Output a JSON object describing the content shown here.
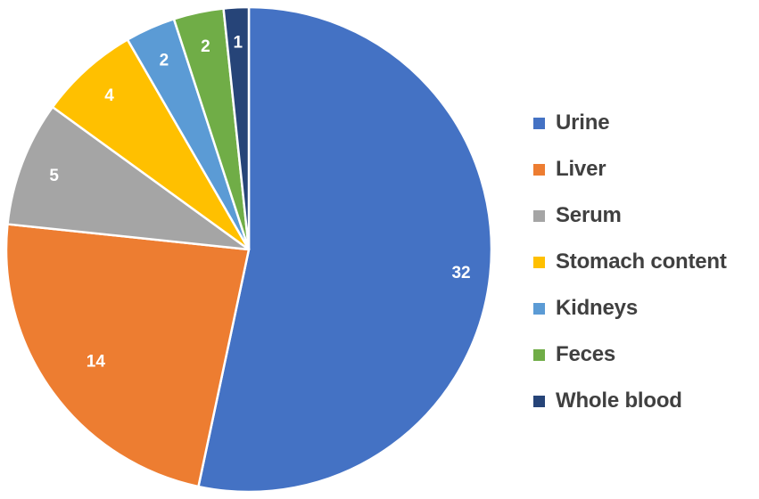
{
  "chart_data": {
    "type": "pie",
    "categories": [
      "Urine",
      "Liver",
      "Serum",
      "Stomach content",
      "Kidneys",
      "Feces",
      "Whole blood"
    ],
    "values": [
      32,
      14,
      5,
      4,
      2,
      2,
      1
    ],
    "data_labels": [
      "32",
      "14",
      "5",
      "4",
      "2",
      "2",
      "1"
    ],
    "colors": [
      "#4472C4",
      "#ED7D31",
      "#A5A5A5",
      "#FFC000",
      "#5B9BD5",
      "#70AD47",
      "#264478"
    ],
    "start_angle": "12 o'clock",
    "direction": "clockwise",
    "legend_position": "right",
    "title": ""
  }
}
